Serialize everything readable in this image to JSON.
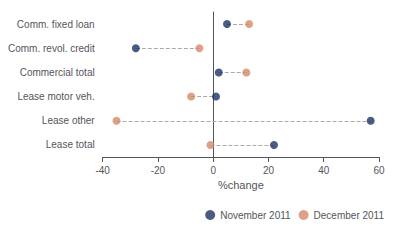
{
  "chart_data": {
    "type": "dumbbell",
    "categories": [
      "Comm. fixed loan",
      "Comm. revol. credit",
      "Commercial total",
      "Lease motor veh.",
      "Lease other",
      "Lease total"
    ],
    "series": [
      {
        "name": "November 2011",
        "color": "#1F3168",
        "values": [
          5,
          -28,
          2,
          1,
          57,
          22
        ]
      },
      {
        "name": "December 2011",
        "color": "#D4896A",
        "values": [
          13,
          -5,
          12,
          -8,
          -35,
          -1
        ]
      }
    ],
    "xlabel": "%change",
    "xlim": [
      -40,
      60
    ],
    "xticks": [
      -40,
      -20,
      0,
      20,
      40,
      60
    ],
    "marker": "circle",
    "grid": false,
    "legend": "lower right"
  }
}
